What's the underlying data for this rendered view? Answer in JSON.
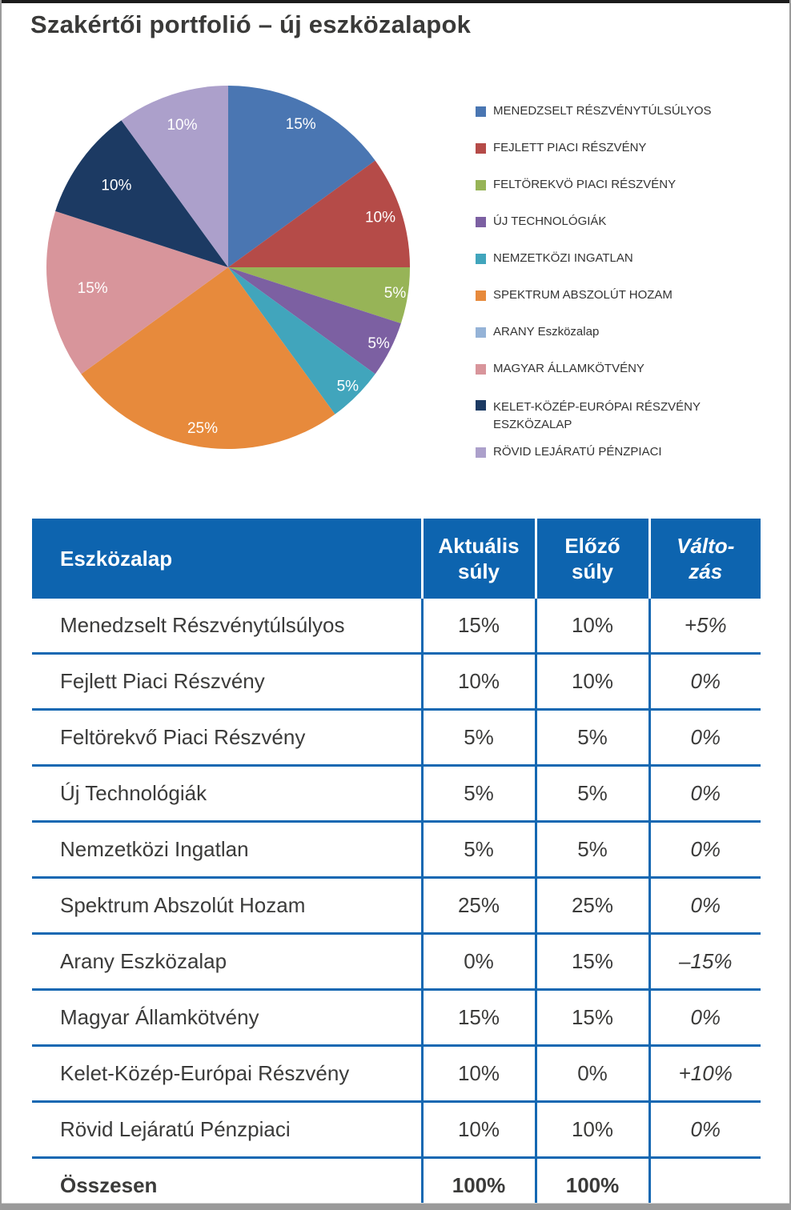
{
  "page": {
    "title": "Szakértői portfolió – új eszközalapok"
  },
  "colors": {
    "header_bg": "#0d64af",
    "table_border": "#1468b2",
    "title_text": "#3a3a39",
    "body_text": "#3b3b3a"
  },
  "chart_data": {
    "type": "pie",
    "title": "Szakértői portfolió – új eszközalapok",
    "unit": "%",
    "start_angle_deg": -90,
    "direction": "clockwise",
    "legend_position": "right",
    "categories": [
      "MENEDZSELT RÉSZVÉNYTÚLSÚLYOS",
      "FEJLETT PIACI RÉSZVÉNY",
      "FELTÖREKVÖ PIACI RÉSZVÉNY",
      "ÚJ TECHNOLÓGIÁK",
      "NEMZETKÖZI INGATLAN",
      "SPEKTRUM ABSZOLÚT HOZAM",
      "ARANY Eszközalap",
      "MAGYAR ÁLLAMKÖTVÉNY",
      "KELET-KÖZÉP-EURÓPAI RÉSZVÉNY ESZKÖZALAP",
      "RÖVID LEJÁRATÚ PÉNZPIACI"
    ],
    "values": [
      15,
      10,
      5,
      5,
      5,
      25,
      0,
      15,
      10,
      10
    ],
    "slice_labels": [
      "15%",
      "10%",
      "5%",
      "5%",
      "5%",
      "25%",
      null,
      "15%",
      "10%",
      "10%"
    ],
    "colors": [
      "#4a76b2",
      "#b54b48",
      "#97b457",
      "#7c60a2",
      "#41a5bc",
      "#e78a3c",
      "#95b3d7",
      "#d8959b",
      "#1c3a63",
      "#aca0cb"
    ]
  },
  "table": {
    "headers": [
      "Eszközalap",
      "Aktuális\nsúly",
      "Előző\nsúly",
      "Válto-\nzás"
    ],
    "rows": [
      {
        "name": "Menedzselt Részvénytúlsúlyos",
        "current": "15%",
        "previous": "10%",
        "change": "+5%"
      },
      {
        "name": "Fejlett Piaci Részvény",
        "current": "10%",
        "previous": "10%",
        "change": "0%"
      },
      {
        "name": "Feltörekvő Piaci Részvény",
        "current": "5%",
        "previous": "5%",
        "change": "0%"
      },
      {
        "name": "Új Technológiák",
        "current": "5%",
        "previous": "5%",
        "change": "0%"
      },
      {
        "name": "Nemzetközi Ingatlan",
        "current": "5%",
        "previous": "5%",
        "change": "0%"
      },
      {
        "name": "Spektrum Abszolút Hozam",
        "current": "25%",
        "previous": "25%",
        "change": "0%"
      },
      {
        "name": "Arany Eszközalap",
        "current": "0%",
        "previous": "15%",
        "change": "–15%"
      },
      {
        "name": "Magyar Államkötvény",
        "current": "15%",
        "previous": "15%",
        "change": "0%"
      },
      {
        "name": "Kelet-Közép-Európai Részvény",
        "current": "10%",
        "previous": "0%",
        "change": "+10%"
      },
      {
        "name": "Rövid Lejáratú Pénzpiaci",
        "current": "10%",
        "previous": "10%",
        "change": "0%"
      }
    ],
    "total": {
      "name": "Összesen",
      "current": "100%",
      "previous": "100%",
      "change": ""
    }
  }
}
